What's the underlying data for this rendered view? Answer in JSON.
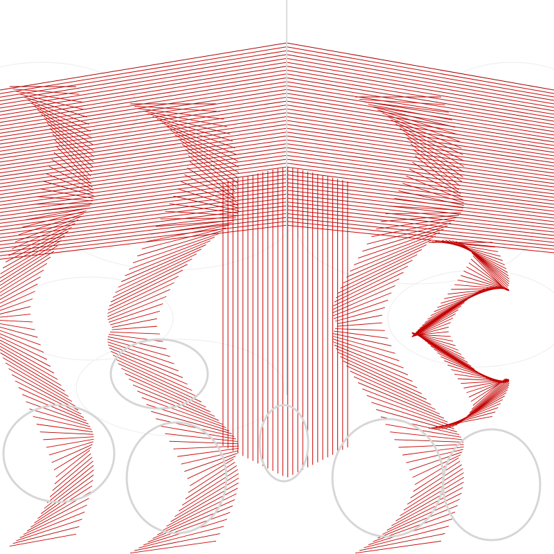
{
  "scene": {
    "name": "parametric-string-art-sculpture",
    "colors": {
      "background": "#ffffff",
      "thread": "#cc0000",
      "thread_dark": "#a30000",
      "ring": "#d6d6d6",
      "axis": "#dcdcdc"
    },
    "twists": [
      {
        "id": "twist-far-left",
        "turns": 1.5
      },
      {
        "id": "twist-left",
        "turns": 1.5
      },
      {
        "id": "twist-right",
        "turns": 1.5
      },
      {
        "id": "twist-far-right",
        "turns": 1.5
      }
    ]
  }
}
